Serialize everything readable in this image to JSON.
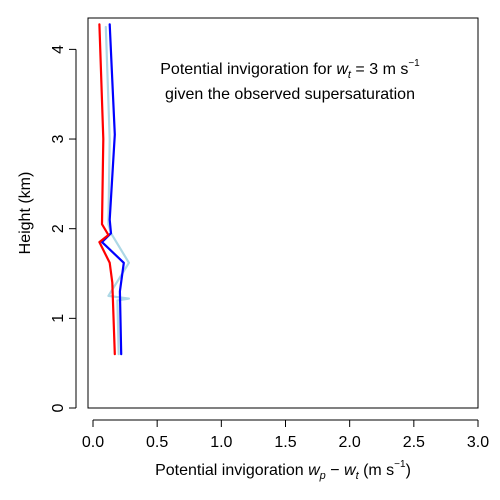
{
  "chart_data": {
    "type": "line",
    "annotation": {
      "line1_text": "Potential invigoration for",
      "line1_var": "w",
      "line1_sub": "t",
      "line1_eq": " = 3 m s",
      "line1_sup": "−1",
      "line2": "given the observed supersaturation"
    },
    "xlabel": {
      "text": "Potential invigoration ",
      "var_p": "w",
      "sub_p": "p",
      "minus": " − ",
      "var_t": "w",
      "sub_t": "t",
      "units_open": "  (m s",
      "units_sup": "−1",
      "units_close": ")"
    },
    "ylabel": "Height (km)",
    "xlim": [
      0,
      3
    ],
    "ylim": [
      0,
      4.35
    ],
    "xticks": [
      0,
      0.5,
      1.0,
      1.5,
      2.0,
      2.5,
      3.0
    ],
    "xtick_labels": [
      "0.0",
      "0.5",
      "1.0",
      "1.5",
      "2.0",
      "2.5",
      "3.0"
    ],
    "yticks": [
      0,
      1,
      2,
      3,
      4
    ],
    "ytick_labels": [
      "0",
      "1",
      "2",
      "3",
      "4"
    ],
    "series": [
      {
        "color": "#add8e6",
        "points": [
          [
            0.2,
            0.6
          ],
          [
            0.19,
            1.2
          ],
          [
            0.28,
            1.22
          ],
          [
            0.12,
            1.25
          ],
          [
            0.28,
            1.62
          ],
          [
            0.14,
            1.95
          ],
          [
            0.12,
            2.05
          ],
          [
            0.13,
            3.0
          ],
          [
            0.1,
            4.25
          ]
        ]
      },
      {
        "color": "#0000ff",
        "points": [
          [
            0.22,
            0.6
          ],
          [
            0.21,
            1.3
          ],
          [
            0.24,
            1.62
          ],
          [
            0.07,
            1.85
          ],
          [
            0.14,
            1.95
          ],
          [
            0.13,
            2.1
          ],
          [
            0.17,
            3.05
          ],
          [
            0.13,
            4.28
          ]
        ]
      },
      {
        "color": "#ff0000",
        "points": [
          [
            0.17,
            0.6
          ],
          [
            0.15,
            1.4
          ],
          [
            0.13,
            1.62
          ],
          [
            0.05,
            1.85
          ],
          [
            0.12,
            1.93
          ],
          [
            0.07,
            2.05
          ],
          [
            0.08,
            3.0
          ],
          [
            0.05,
            4.28
          ]
        ]
      }
    ]
  }
}
